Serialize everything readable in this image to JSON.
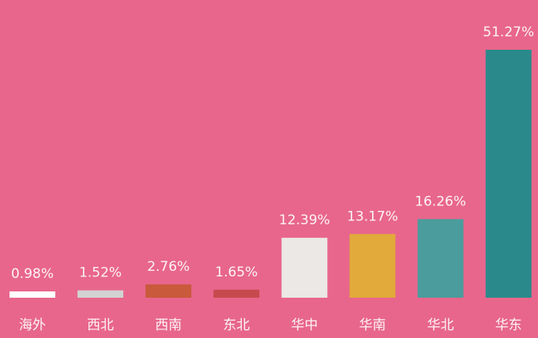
{
  "chart_data": {
    "type": "bar",
    "categories": [
      "海外",
      "西北",
      "西南",
      "东北",
      "华中",
      "华南",
      "华北",
      "华东"
    ],
    "values": [
      0.98,
      1.52,
      2.76,
      1.65,
      12.39,
      13.17,
      16.26,
      51.27
    ],
    "value_labels": [
      "0.98%",
      "1.52%",
      "2.76%",
      "1.65%",
      "12.39%",
      "13.17%",
      "16.26%",
      "51.27%"
    ],
    "colors": [
      "#ffffff",
      "#d2d2d2",
      "#c95a3c",
      "#c64a4c",
      "#ebe8e5",
      "#e1aa3a",
      "#4b9c9c",
      "#2a8a8b"
    ]
  }
}
